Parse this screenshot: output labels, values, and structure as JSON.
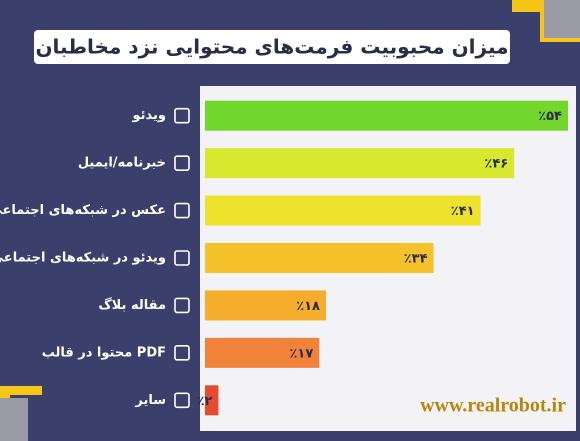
{
  "chart_data": {
    "type": "bar",
    "orientation": "horizontal",
    "title": "میزان محبوبیت فرمت‌های محتوایی نزد مخاطبان",
    "categories": [
      "ویدئو",
      "خبرنامه/ایمیل",
      "عکس در شبکه‌های اجتماعی",
      "ویدئو در شبکه‌های اجتماعی",
      "مقاله بلاگ",
      "محتوا در قالب PDF",
      "سایر"
    ],
    "values": [
      54,
      46,
      41,
      34,
      18,
      17,
      2
    ],
    "value_labels": [
      "٪۵۴",
      "٪۴۶",
      "٪۴۱",
      "٪۳۴",
      "٪۱۸",
      "٪۱۷",
      "٪۲"
    ],
    "colors": [
      "#72d62c",
      "#d8e82e",
      "#eee22c",
      "#f6c22c",
      "#f6ad2c",
      "#f2823a",
      "#e84a30"
    ],
    "watermark": "www.realrobot.ir"
  }
}
